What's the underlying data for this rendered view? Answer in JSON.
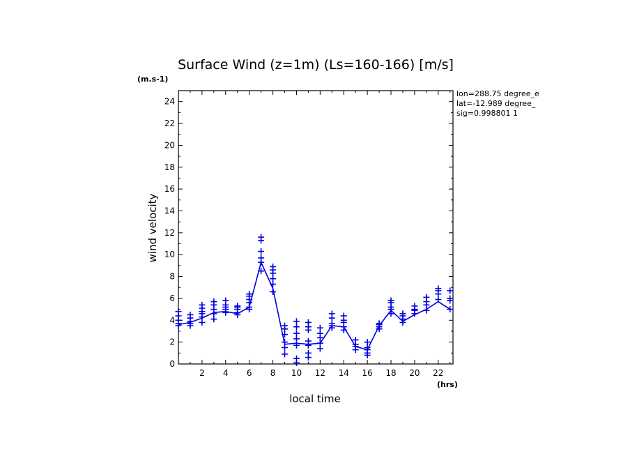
{
  "chart_data": {
    "type": "scatter",
    "title": "Surface Wind (z=1m) (Ls=160-166) [m/s]",
    "y_unit": "(m.s-1)",
    "x_unit": "(hrs)",
    "xlabel": "local time",
    "ylabel": "wind velocity",
    "info": [
      "lon=288.75 degree_e",
      "lat=-12.989 degree_",
      "sig=0.998801 1"
    ],
    "xlim": [
      0,
      23.25
    ],
    "ylim": [
      0,
      25
    ],
    "x_ticks": [
      2,
      4,
      6,
      8,
      10,
      12,
      14,
      16,
      18,
      20,
      22
    ],
    "y_ticks": [
      0,
      2,
      4,
      6,
      8,
      10,
      12,
      14,
      16,
      18,
      20,
      22,
      24
    ],
    "grid": false,
    "color": "#0000e0",
    "series": [
      {
        "kind": "points",
        "marker": "+",
        "points": [
          [
            0,
            3.5
          ],
          [
            0,
            3.7
          ],
          [
            0,
            4.0
          ],
          [
            0,
            4.4
          ],
          [
            0,
            4.8
          ],
          [
            1,
            3.5
          ],
          [
            1,
            3.7
          ],
          [
            1,
            3.9
          ],
          [
            1,
            4.2
          ],
          [
            1,
            4.5
          ],
          [
            2,
            3.8
          ],
          [
            2,
            4.3
          ],
          [
            2,
            4.6
          ],
          [
            2,
            4.8
          ],
          [
            2,
            5.1
          ],
          [
            2,
            5.4
          ],
          [
            3,
            4.1
          ],
          [
            3,
            4.6
          ],
          [
            3,
            5.0
          ],
          [
            3,
            5.4
          ],
          [
            3,
            5.7
          ],
          [
            4,
            4.7
          ],
          [
            4,
            5.0
          ],
          [
            4,
            5.2
          ],
          [
            4,
            5.4
          ],
          [
            4,
            5.8
          ],
          [
            5,
            4.5
          ],
          [
            5,
            4.7
          ],
          [
            5,
            5.0
          ],
          [
            5,
            5.2
          ],
          [
            5,
            5.3
          ],
          [
            6,
            5.0
          ],
          [
            6,
            5.2
          ],
          [
            6,
            5.6
          ],
          [
            6,
            5.9
          ],
          [
            6,
            6.2
          ],
          [
            6,
            6.4
          ],
          [
            7,
            8.5
          ],
          [
            7,
            9.3
          ],
          [
            7,
            9.7
          ],
          [
            7,
            10.3
          ],
          [
            7,
            11.3
          ],
          [
            7,
            11.6
          ],
          [
            8,
            6.6
          ],
          [
            8,
            7.3
          ],
          [
            8,
            7.8
          ],
          [
            8,
            8.3
          ],
          [
            8,
            8.6
          ],
          [
            8,
            8.9
          ],
          [
            9,
            0.9
          ],
          [
            9,
            1.5
          ],
          [
            9,
            2.0
          ],
          [
            9,
            2.7
          ],
          [
            9,
            3.2
          ],
          [
            9,
            3.5
          ],
          [
            10,
            0.1
          ],
          [
            10,
            0.5
          ],
          [
            10,
            1.7
          ],
          [
            10,
            2.3
          ],
          [
            10,
            2.8
          ],
          [
            10,
            3.4
          ],
          [
            10,
            3.9
          ],
          [
            11,
            0.6
          ],
          [
            11,
            1.0
          ],
          [
            11,
            1.7
          ],
          [
            11,
            2.1
          ],
          [
            11,
            3.1
          ],
          [
            11,
            3.4
          ],
          [
            11,
            3.8
          ],
          [
            12,
            1.4
          ],
          [
            12,
            1.9
          ],
          [
            12,
            2.4
          ],
          [
            12,
            2.8
          ],
          [
            12,
            3.3
          ],
          [
            13,
            3.3
          ],
          [
            13,
            3.5
          ],
          [
            13,
            3.7
          ],
          [
            13,
            4.2
          ],
          [
            13,
            4.6
          ],
          [
            14,
            3.1
          ],
          [
            14,
            3.4
          ],
          [
            14,
            3.8
          ],
          [
            14,
            4.0
          ],
          [
            14,
            4.4
          ],
          [
            15,
            1.3
          ],
          [
            15,
            1.6
          ],
          [
            15,
            1.8
          ],
          [
            15,
            2.2
          ],
          [
            16,
            0.8
          ],
          [
            16,
            1.0
          ],
          [
            16,
            1.3
          ],
          [
            16,
            1.5
          ],
          [
            16,
            2.0
          ],
          [
            17,
            3.2
          ],
          [
            17,
            3.4
          ],
          [
            17,
            3.6
          ],
          [
            17,
            3.7
          ],
          [
            18,
            4.6
          ],
          [
            18,
            5.0
          ],
          [
            18,
            5.2
          ],
          [
            18,
            5.6
          ],
          [
            18,
            5.8
          ],
          [
            19,
            3.8
          ],
          [
            19,
            4.1
          ],
          [
            19,
            4.4
          ],
          [
            19,
            4.6
          ],
          [
            20,
            4.6
          ],
          [
            20,
            4.9
          ],
          [
            20,
            5.0
          ],
          [
            20,
            5.3
          ],
          [
            21,
            4.9
          ],
          [
            21,
            5.4
          ],
          [
            21,
            5.7
          ],
          [
            21,
            6.1
          ],
          [
            22,
            5.9
          ],
          [
            22,
            6.4
          ],
          [
            22,
            6.7
          ],
          [
            22,
            6.9
          ],
          [
            23,
            5.0
          ],
          [
            23,
            5.8
          ],
          [
            23,
            6.0
          ],
          [
            23,
            6.7
          ]
        ]
      },
      {
        "kind": "line",
        "x": [
          0,
          1,
          2,
          3,
          4,
          5,
          6,
          7,
          8,
          9,
          10,
          11,
          12,
          13,
          14,
          15,
          16,
          17,
          18,
          19,
          20,
          21,
          22,
          23
        ],
        "values": [
          3.6,
          3.8,
          4.2,
          4.7,
          4.8,
          4.6,
          5.2,
          9.3,
          6.9,
          1.8,
          1.9,
          1.8,
          1.9,
          3.5,
          3.4,
          1.6,
          1.3,
          3.5,
          4.9,
          3.9,
          4.5,
          5.0,
          5.7,
          5.0
        ]
      }
    ]
  }
}
